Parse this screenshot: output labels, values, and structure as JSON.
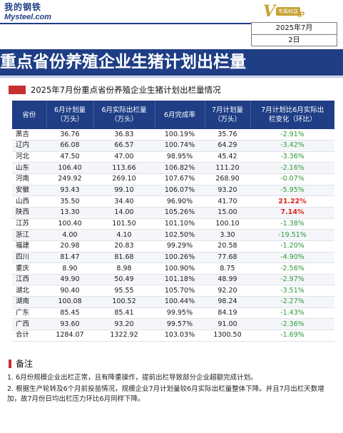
{
  "logo": {
    "cn": "我的钢铁",
    "en": "Mysteel.com"
  },
  "vip": {
    "letter": "V",
    "tag": "专属权益",
    "suffix": "iP"
  },
  "date": {
    "month": "2025年7月",
    "day": "2日"
  },
  "title": "重点省份养殖企业生猪计划出栏量",
  "subtitle": "2025年7月份重点省份养殖企业生猪计划出栏量情况",
  "table": {
    "headers": [
      "省份",
      "6月计划量\n（万头）",
      "6月实际出栏量\n（万头）",
      "6月完成率",
      "7月计划量\n（万头）",
      "7月计划比6月实际出\n栏变化（环比）"
    ],
    "rows": [
      [
        "黑吉",
        "36.76",
        "36.83",
        "100.19%",
        "35.76",
        "-2.91%"
      ],
      [
        "辽内",
        "66.08",
        "66.57",
        "100.74%",
        "64.29",
        "-3.42%"
      ],
      [
        "河北",
        "47.50",
        "47.00",
        "98.95%",
        "45.42",
        "-3.36%"
      ],
      [
        "山东",
        "106.40",
        "113.66",
        "106.82%",
        "111.20",
        "-2.16%"
      ],
      [
        "河南",
        "249.92",
        "269.10",
        "107.67%",
        "268.90",
        "-0.07%"
      ],
      [
        "安徽",
        "93.43",
        "99.10",
        "106.07%",
        "93.20",
        "-5.95%"
      ],
      [
        "山西",
        "35.50",
        "34.40",
        "96.90%",
        "41.70",
        "21.22%"
      ],
      [
        "陕西",
        "13.30",
        "14.00",
        "105.26%",
        "15.00",
        "7.14%"
      ],
      [
        "江苏",
        "100.40",
        "101.50",
        "101.10%",
        "100.10",
        "-1.38%"
      ],
      [
        "浙江",
        "4.00",
        "4.10",
        "102.50%",
        "3.30",
        "-19.51%"
      ],
      [
        "福建",
        "20.98",
        "20.83",
        "99.29%",
        "20.58",
        "-1.20%"
      ],
      [
        "四川",
        "81.47",
        "81.68",
        "100.26%",
        "77.68",
        "-4.90%"
      ],
      [
        "重庆",
        "8.90",
        "8.98",
        "100.90%",
        "8.75",
        "-2.56%"
      ],
      [
        "江西",
        "49.90",
        "50.49",
        "101.18%",
        "48.99",
        "-2.97%"
      ],
      [
        "湖北",
        "90.40",
        "95.55",
        "105.70%",
        "92.20",
        "-3.51%"
      ],
      [
        "湖南",
        "100.08",
        "100.52",
        "100.44%",
        "98.24",
        "-2.27%"
      ],
      [
        "广东",
        "85.45",
        "85.41",
        "99.95%",
        "84.19",
        "-1.43%"
      ],
      [
        "广西",
        "93.60",
        "93.20",
        "99.57%",
        "91.00",
        "-2.36%"
      ],
      [
        "合计",
        "1284.07",
        "1322.92",
        "103.03%",
        "1300.50",
        "-1.69%"
      ]
    ]
  },
  "colors": {
    "navy": "#1f3e86",
    "red": "#e2231a",
    "green": "#2e9a3a"
  },
  "note": {
    "title": "备注",
    "items": [
      "1. 6月份规模企业出栏正常，且有降重操作，提前出栏导致部分企业超额完成计划。",
      "2. 根据生产轮转及6个月前投苗情况，规模企业7月计划量较6月实际出栏量整体下降。并且7月出栏天数增加，故7月份日均出栏压力环比6月同样下降。"
    ]
  }
}
